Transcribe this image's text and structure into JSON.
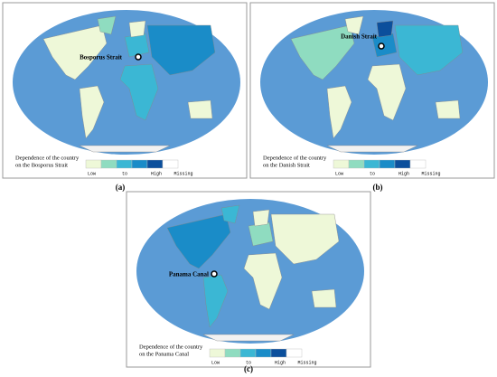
{
  "panels": [
    {
      "label": "(a)",
      "strait": "Bosporus Strait",
      "caption": [
        "Dependence of the country",
        "on the Bosporus Strait"
      ]
    },
    {
      "label": "(b)",
      "strait": "Danish Strait",
      "caption": [
        "Dependence of the country",
        "on the Danish Strait"
      ]
    },
    {
      "label": "(c)",
      "strait": "Panama Canal",
      "caption": [
        "Dependence of the country",
        "on the Panama Canal"
      ]
    }
  ],
  "legend": {
    "labels": [
      "Low",
      "to",
      "High",
      "Missing"
    ]
  }
}
